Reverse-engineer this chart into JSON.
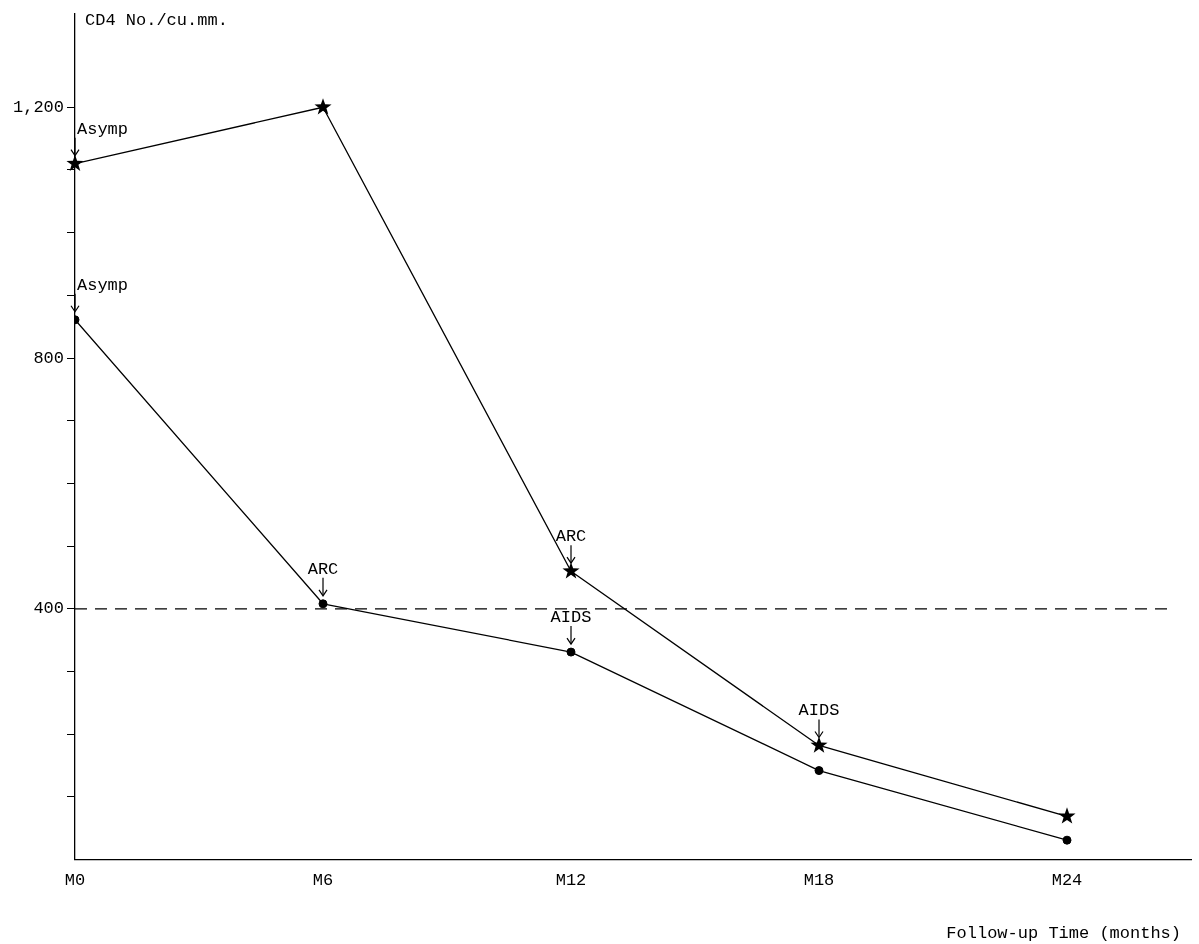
{
  "chart_data": {
    "type": "line",
    "ylabel": "CD4 No./cu.mm.",
    "xlabel": "Follow-up Time (months)",
    "categories": [
      "M0",
      "M6",
      "M12",
      "M18",
      "M24"
    ],
    "series": [
      {
        "color": "#000000",
        "marker": "star",
        "values": [
          1110,
          1200,
          460,
          182,
          69
        ]
      },
      {
        "color": "#000000",
        "marker": "circle",
        "values": [
          861,
          408,
          331,
          142,
          31
        ]
      }
    ],
    "ylim": [
      0,
      1350
    ],
    "yticks": [
      {
        "value": 100,
        "label": null
      },
      {
        "value": 200,
        "label": null
      },
      {
        "value": 300,
        "label": null
      },
      {
        "value": 400,
        "label": "400"
      },
      {
        "value": 500,
        "label": null
      },
      {
        "value": 600,
        "label": null
      },
      {
        "value": 700,
        "label": null
      },
      {
        "value": 800,
        "label": "800"
      },
      {
        "value": 900,
        "label": null
      },
      {
        "value": 1000,
        "label": null
      },
      {
        "value": 1100,
        "label": null
      },
      {
        "value": 1200,
        "label": "1,200"
      }
    ],
    "ref_lines": [
      {
        "axis": "y",
        "value": 400,
        "line_style": "dashed",
        "color": "#000000"
      }
    ],
    "annotations": [
      {
        "text": "Asymp",
        "x": "M0",
        "y": 1110
      },
      {
        "text": "Asymp",
        "x": "M0",
        "y": 861
      },
      {
        "text": "ARC",
        "x": "M6",
        "y": 408
      },
      {
        "text": "ARC",
        "x": "M12",
        "y": 460
      },
      {
        "text": "AIDS",
        "x": "M12",
        "y": 331
      },
      {
        "text": "AIDS",
        "x": "M18",
        "y": 182
      }
    ],
    "grid": false,
    "legend": false
  }
}
